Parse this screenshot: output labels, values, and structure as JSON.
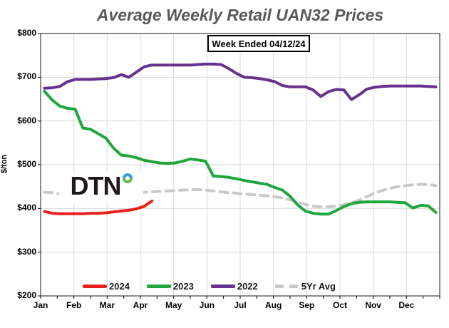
{
  "title": "Average Weekly Retail UAN32 Prices",
  "annotation": "Week Ended 04/12/24",
  "logo": {
    "text": "DTN",
    "ring_icon": "blue-green-ring"
  },
  "y_axis": {
    "title": "$/ton",
    "tick_labels": [
      "$200",
      "$300",
      "$400",
      "$500",
      "$600",
      "$700",
      "$800"
    ],
    "tick_values": [
      200,
      300,
      400,
      500,
      600,
      700,
      800
    ]
  },
  "x_axis": {
    "months": [
      "Jan",
      "Feb",
      "Mar",
      "Apr",
      "May",
      "Jun",
      "Jul",
      "Aug",
      "Sep",
      "Oct",
      "Nov",
      "Dec"
    ]
  },
  "colors": {
    "red_2024": "#e8211d",
    "green_2023": "#1fa63c",
    "purple_2022": "#67328e",
    "gray_5yr": "#c9c9c9",
    "grid": "#d9d9d9",
    "spine": "#4d4d4d",
    "title_text": "#595959"
  },
  "chart_data": {
    "type": "line",
    "title": "Average Weekly Retail UAN32 Prices",
    "subtitle": "Week Ended 04/12/24",
    "xlabel": "",
    "ylabel": "$/ton",
    "ylim": [
      200,
      800
    ],
    "x_unit": "week_of_year_1_to_52",
    "grid": true,
    "legend_position": "bottom-inside",
    "series": [
      {
        "name": "2024",
        "color": "#e8211d",
        "style": "solid",
        "values": [
          393,
          389,
          388,
          388,
          388,
          388,
          389,
          389,
          390,
          392,
          394,
          396,
          399,
          405,
          417
        ]
      },
      {
        "name": "2023",
        "color": "#1fa63c",
        "style": "solid",
        "values": [
          668,
          648,
          634,
          629,
          627,
          584,
          581,
          571,
          561,
          538,
          522,
          520,
          516,
          510,
          507,
          504,
          503,
          504,
          508,
          513,
          511,
          508,
          474,
          473,
          471,
          468,
          464,
          461,
          458,
          455,
          448,
          442,
          428,
          408,
          394,
          389,
          387,
          387,
          395,
          404,
          411,
          414,
          415,
          415,
          415,
          415,
          414,
          413,
          401,
          407,
          406,
          391
        ]
      },
      {
        "name": "2022",
        "color": "#67328e",
        "style": "solid",
        "values": [
          675,
          676,
          679,
          690,
          695,
          695,
          695,
          696,
          697,
          699,
          706,
          700,
          712,
          724,
          728,
          728,
          728,
          728,
          728,
          728,
          729,
          730,
          730,
          729,
          720,
          709,
          700,
          699,
          697,
          694,
          690,
          681,
          678,
          678,
          678,
          671,
          656,
          667,
          672,
          671,
          649,
          660,
          673,
          677,
          679,
          680,
          680,
          680,
          680,
          680,
          679,
          678
        ]
      },
      {
        "name": "5Yr Avg",
        "color": "#c9c9c9",
        "style": "dashed",
        "values": [
          437,
          436,
          434,
          431,
          429,
          428,
          428,
          429,
          430,
          432,
          434,
          436,
          437,
          437,
          438,
          439,
          440,
          441,
          442,
          443,
          443,
          442,
          440,
          438,
          436,
          435,
          433,
          432,
          430,
          429,
          427,
          424,
          420,
          415,
          409,
          405,
          404,
          404,
          405,
          408,
          413,
          419,
          427,
          435,
          441,
          446,
          450,
          452,
          454,
          455,
          455,
          452
        ]
      }
    ]
  }
}
